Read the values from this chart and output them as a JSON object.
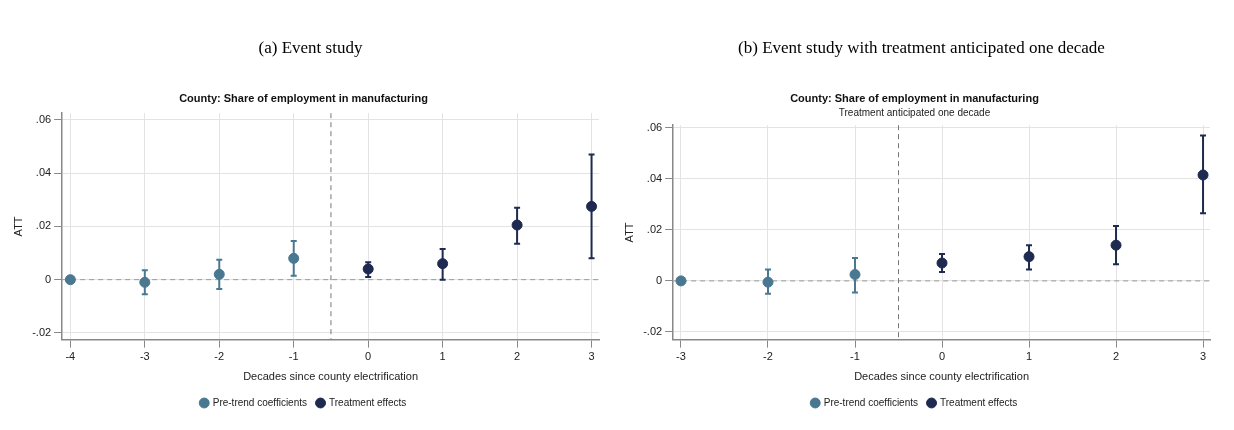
{
  "chart_data": [
    {
      "type": "scatter",
      "title": "County: Share of employment in manufacturing",
      "annotations": [
        "(a) Event study"
      ],
      "xlabel": "Decades since county electrification",
      "ylabel": "ATT",
      "series": [
        {
          "name": "Pre-trend coefficients",
          "color": "#4a7891",
          "x": [
            -4,
            -3,
            -2,
            -1
          ],
          "values": [
            0,
            -0.001,
            0.002,
            0.008
          ],
          "errors": [
            null,
            [
              -0.0055,
              0.0035
            ],
            [
              -0.0035,
              0.0075
            ],
            [
              0.0015,
              0.0145
            ]
          ]
        },
        {
          "name": "Treatment effects",
          "color": "#1e2a50",
          "x": [
            0,
            1,
            2,
            3
          ],
          "values": [
            0.004,
            0.006,
            0.0205,
            0.0275
          ],
          "errors": [
            [
              0.001,
              0.0065
            ],
            [
              0,
              0.0115
            ],
            [
              0.0135,
              0.027
            ],
            [
              0.008,
              0.047
            ]
          ]
        }
      ],
      "xlim": [
        -4.11,
        3.1
      ],
      "xticks": [
        -4,
        -3,
        -2,
        -1,
        0,
        1,
        2,
        3
      ],
      "ylim": [
        -0.0225,
        0.0625
      ],
      "yticks": [
        {
          "value": -0.02,
          "label": "-.02"
        },
        0,
        {
          "value": 0.02,
          "label": ".02"
        },
        {
          "value": 0.04,
          "label": ".04"
        },
        {
          "value": 0.06,
          "label": ".06"
        }
      ],
      "ref_lines": [
        {
          "axis": "y",
          "value": 0,
          "line_style": "dashed",
          "color": "#999999"
        },
        {
          "axis": "x",
          "value": -0.5,
          "line_style": "dashed",
          "color": "#777777"
        }
      ],
      "grid": true,
      "legend": "bottom",
      "marker": "circle"
    },
    {
      "type": "scatter",
      "title": "County: Share of employment in manufacturing",
      "subtitle": "Treatment anticipated one decade",
      "annotations": [
        "(b) Event study with treatment anticipated one decade"
      ],
      "xlabel": "Decades since county electrification",
      "ylabel": "ATT",
      "series": [
        {
          "name": "Pre-trend coefficients",
          "color": "#4a7891",
          "x": [
            -3,
            -2,
            -1
          ],
          "values": [
            0,
            -0.0005,
            0.0025
          ],
          "errors": [
            null,
            [
              -0.005,
              0.0045
            ],
            [
              -0.0045,
              0.009
            ]
          ]
        },
        {
          "name": "Treatment effects",
          "color": "#1e2a50",
          "x": [
            0,
            1,
            2,
            3
          ],
          "values": [
            0.007,
            0.0095,
            0.014,
            0.0415
          ],
          "errors": [
            [
              0.0035,
              0.0105
            ],
            [
              0.0045,
              0.014
            ],
            [
              0.0065,
              0.0215
            ],
            [
              0.0265,
              0.057
            ]
          ]
        }
      ],
      "xlim": [
        -3.09,
        3.08
      ],
      "xticks": [
        -3,
        -2,
        -1,
        0,
        1,
        2,
        3
      ],
      "ylim": [
        -0.023,
        0.061
      ],
      "yticks": [
        {
          "value": -0.02,
          "label": "-.02"
        },
        0,
        {
          "value": 0.02,
          "label": ".02"
        },
        {
          "value": 0.04,
          "label": ".04"
        },
        {
          "value": 0.06,
          "label": ".06"
        }
      ],
      "ref_lines": [
        {
          "axis": "y",
          "value": 0,
          "line_style": "dashed",
          "color": "#999999"
        },
        {
          "axis": "x",
          "value": -0.5,
          "line_style": "dashed",
          "color": "#777777"
        }
      ],
      "grid": true,
      "legend": "bottom",
      "marker": "circle"
    }
  ]
}
